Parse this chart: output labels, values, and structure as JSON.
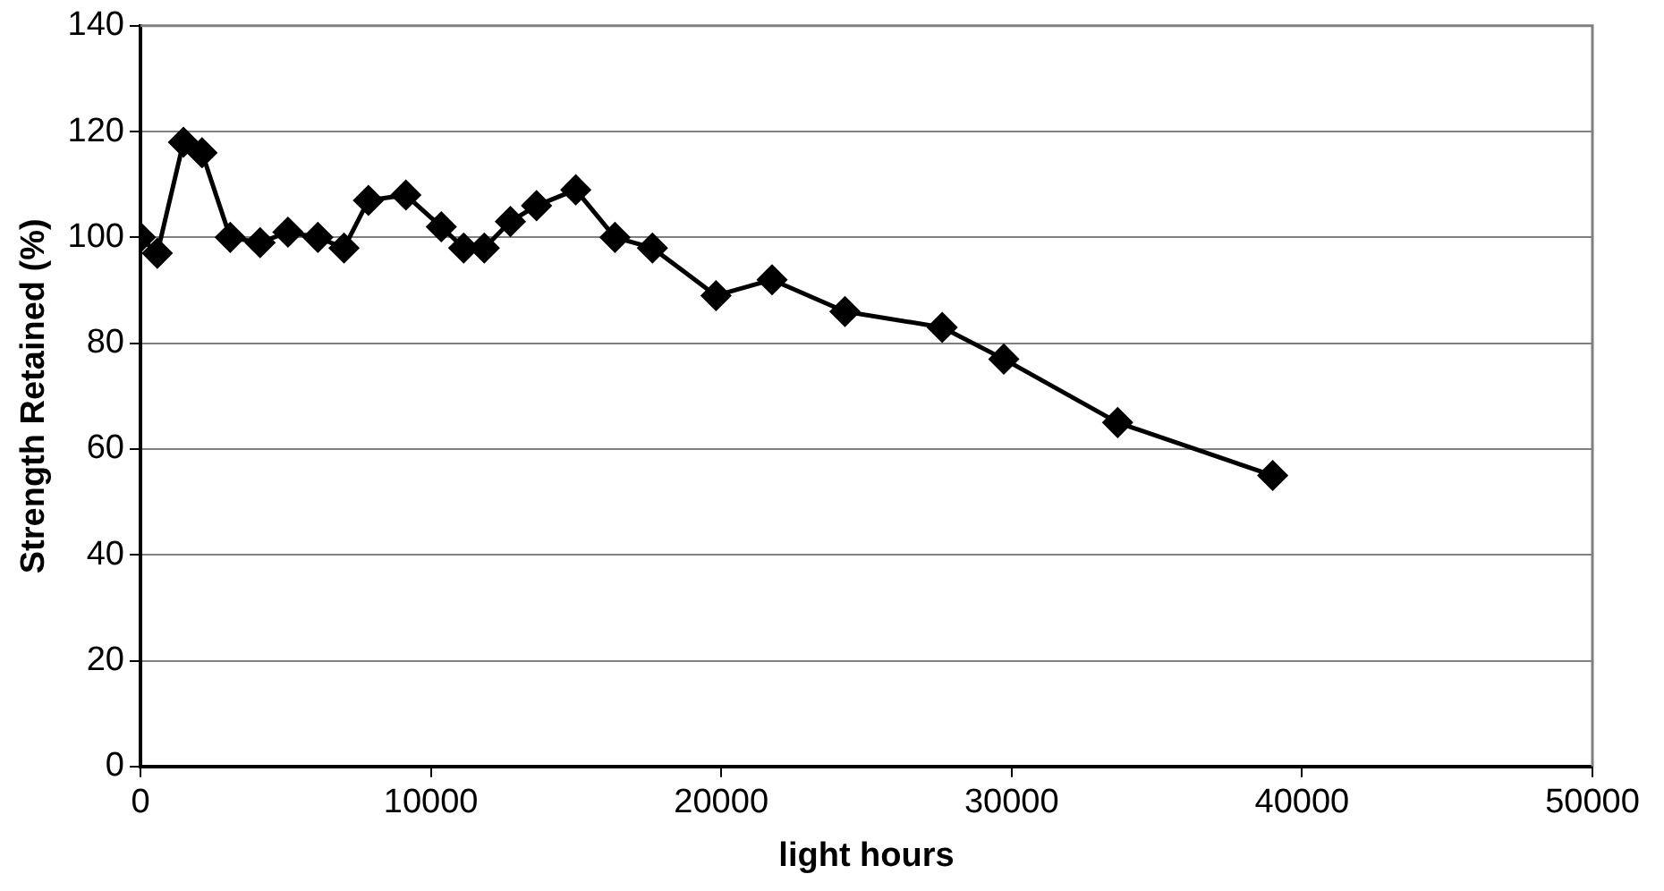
{
  "chart_data": {
    "type": "line",
    "xlabel": "light hours",
    "ylabel": "Strength Retained (%)",
    "x": [
      0,
      580,
      1480,
      2120,
      3090,
      4120,
      5080,
      6110,
      7010,
      7850,
      9140,
      10360,
      11130,
      11840,
      12740,
      13640,
      14990,
      16340,
      17630,
      19820,
      21750,
      24260,
      27610,
      29730,
      33650,
      38990
    ],
    "series": [
      {
        "color": "#000000",
        "values": [
          100,
          97,
          118,
          116,
          100,
          99,
          101,
          100,
          98,
          107,
          108,
          102,
          98,
          98,
          103,
          106,
          109,
          100,
          98,
          89,
          92,
          86,
          83,
          77,
          65,
          55
        ]
      }
    ],
    "xlim": [
      0,
      50000
    ],
    "xticks": [
      0,
      10000,
      20000,
      30000,
      40000,
      50000
    ],
    "ylim": [
      0,
      140
    ],
    "yticks": [
      0,
      20,
      40,
      60,
      80,
      100,
      120,
      140
    ],
    "grid": "y",
    "legend": false,
    "marker": "diamond",
    "line_style": "solid"
  }
}
